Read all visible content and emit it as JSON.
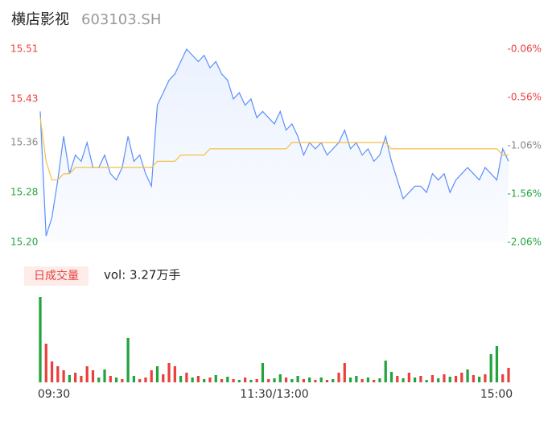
{
  "header": {
    "title": "横店影视",
    "code": "603103.SH"
  },
  "chart_data": [
    {
      "type": "line",
      "xlim": [
        0,
        80
      ],
      "xticks": [
        {
          "value": 0,
          "label": "09:30"
        },
        {
          "value": 40,
          "label": "11:30/13:00"
        },
        {
          "value": 80,
          "label": "15:00"
        }
      ],
      "ylim": [
        15.2,
        15.51
      ],
      "yticks": [
        {
          "value": 15.51,
          "label": "15.51"
        },
        {
          "value": 15.43,
          "label": "15.43"
        },
        {
          "value": 15.36,
          "label": "15.36"
        },
        {
          "value": 15.28,
          "label": "15.28"
        },
        {
          "value": 15.2,
          "label": "15.20"
        }
      ],
      "y2lim": [
        -2.06,
        -0.06
      ],
      "y2ticks": [
        {
          "value": -0.06,
          "label": "-0.06%"
        },
        {
          "value": -0.56,
          "label": "-0.56%"
        },
        {
          "value": -1.06,
          "label": "-1.06%"
        },
        {
          "value": -1.56,
          "label": "-1.56%"
        },
        {
          "value": -2.06,
          "label": "-2.06%"
        }
      ],
      "tick_colors": [
        "#e8403c",
        "#e8403c",
        "#888888",
        "#22a33d",
        "#22a33d"
      ],
      "series": [
        {
          "color": "#5b8ff9",
          "area": true,
          "values": [
            15.41,
            15.21,
            15.24,
            15.3,
            15.37,
            15.31,
            15.34,
            15.33,
            15.36,
            15.32,
            15.32,
            15.34,
            15.31,
            15.3,
            15.32,
            15.37,
            15.33,
            15.34,
            15.31,
            15.29,
            15.42,
            15.44,
            15.46,
            15.47,
            15.49,
            15.51,
            15.5,
            15.49,
            15.5,
            15.48,
            15.49,
            15.47,
            15.46,
            15.43,
            15.44,
            15.42,
            15.43,
            15.4,
            15.41,
            15.4,
            15.39,
            15.41,
            15.38,
            15.39,
            15.37,
            15.34,
            15.36,
            15.35,
            15.36,
            15.34,
            15.35,
            15.36,
            15.38,
            15.35,
            15.36,
            15.34,
            15.35,
            15.33,
            15.34,
            15.37,
            15.33,
            15.3,
            15.27,
            15.28,
            15.29,
            15.29,
            15.28,
            15.31,
            15.3,
            15.31,
            15.28,
            15.3,
            15.31,
            15.32,
            15.31,
            15.3,
            15.32,
            15.31,
            15.3,
            15.35,
            15.33
          ]
        },
        {
          "color": "#f5c043",
          "area": false,
          "values": [
            15.4,
            15.33,
            15.3,
            15.3,
            15.31,
            15.31,
            15.32,
            15.32,
            15.32,
            15.32,
            15.32,
            15.32,
            15.32,
            15.32,
            15.32,
            15.32,
            15.32,
            15.32,
            15.32,
            15.32,
            15.33,
            15.33,
            15.33,
            15.33,
            15.34,
            15.34,
            15.34,
            15.34,
            15.34,
            15.35,
            15.35,
            15.35,
            15.35,
            15.35,
            15.35,
            15.35,
            15.35,
            15.35,
            15.35,
            15.35,
            15.35,
            15.35,
            15.35,
            15.36,
            15.36,
            15.36,
            15.36,
            15.36,
            15.36,
            15.36,
            15.36,
            15.36,
            15.36,
            15.36,
            15.36,
            15.36,
            15.36,
            15.36,
            15.36,
            15.36,
            15.35,
            15.35,
            15.35,
            15.35,
            15.35,
            15.35,
            15.35,
            15.35,
            15.35,
            15.35,
            15.35,
            15.35,
            15.35,
            15.35,
            15.35,
            15.35,
            15.35,
            15.35,
            15.35,
            15.34,
            15.34
          ]
        }
      ]
    },
    {
      "type": "bar",
      "legend": "日成交量",
      "label": "vol: 3.27万手",
      "ylim": [
        0,
        1100
      ],
      "values": [
        1060,
        480,
        260,
        200,
        150,
        90,
        120,
        80,
        200,
        150,
        60,
        160,
        80,
        60,
        40,
        550,
        80,
        40,
        60,
        150,
        200,
        100,
        240,
        200,
        80,
        120,
        60,
        80,
        40,
        60,
        90,
        40,
        70,
        40,
        30,
        60,
        30,
        40,
        240,
        40,
        50,
        100,
        60,
        40,
        80,
        40,
        60,
        30,
        60,
        30,
        40,
        120,
        240,
        60,
        80,
        40,
        60,
        30,
        50,
        270,
        130,
        80,
        50,
        120,
        60,
        80,
        30,
        90,
        50,
        100,
        70,
        80,
        120,
        160,
        90,
        70,
        100,
        350,
        450,
        100,
        180
      ],
      "colors": [
        "#22a33d",
        "#e8403c",
        "#e8403c",
        "#e8403c",
        "#e8403c",
        "#22a33d",
        "#e8403c",
        "#e8403c",
        "#e8403c",
        "#e8403c",
        "#22a33d",
        "#22a33d",
        "#e8403c",
        "#22a33d",
        "#e8403c",
        "#22a33d",
        "#22a33d",
        "#e8403c",
        "#e8403c",
        "#e8403c",
        "#22a33d",
        "#e8403c",
        "#e8403c",
        "#e8403c",
        "#22a33d",
        "#e8403c",
        "#22a33d",
        "#e8403c",
        "#22a33d",
        "#e8403c",
        "#22a33d",
        "#e8403c",
        "#22a33d",
        "#e8403c",
        "#22a33d",
        "#e8403c",
        "#22a33d",
        "#e8403c",
        "#22a33d",
        "#e8403c",
        "#22a33d",
        "#22a33d",
        "#e8403c",
        "#22a33d",
        "#22a33d",
        "#e8403c",
        "#22a33d",
        "#e8403c",
        "#22a33d",
        "#e8403c",
        "#22a33d",
        "#e8403c",
        "#e8403c",
        "#22a33d",
        "#22a33d",
        "#e8403c",
        "#22a33d",
        "#e8403c",
        "#22a33d",
        "#22a33d",
        "#22a33d",
        "#e8403c",
        "#22a33d",
        "#e8403c",
        "#22a33d",
        "#e8403c",
        "#22a33d",
        "#e8403c",
        "#22a33d",
        "#e8403c",
        "#22a33d",
        "#e8403c",
        "#e8403c",
        "#22a33d",
        "#e8403c",
        "#22a33d",
        "#e8403c",
        "#22a33d",
        "#22a33d",
        "#e8403c",
        "#e8403c"
      ]
    }
  ]
}
